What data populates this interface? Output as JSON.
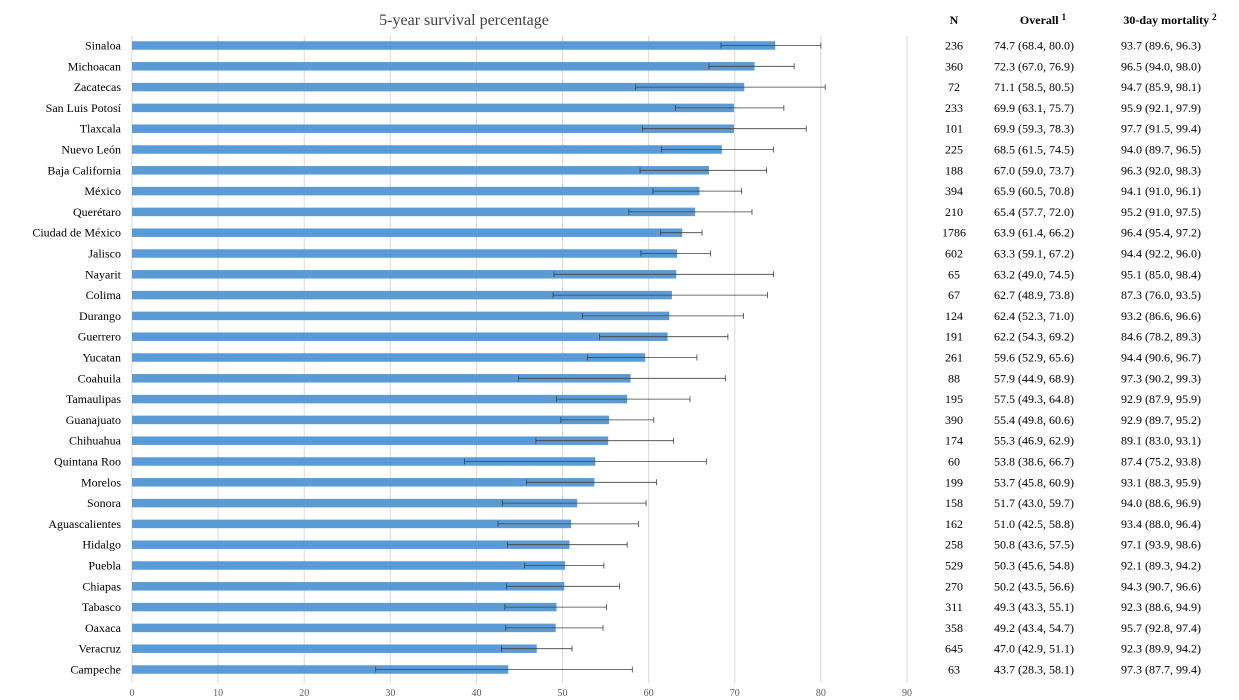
{
  "chart_data": {
    "type": "bar",
    "orientation": "horizontal",
    "title": "5-year survival percentage",
    "xlim": [
      0,
      90
    ],
    "xticks": [
      "0",
      "10",
      "20",
      "30",
      "40",
      "50",
      "60",
      "70",
      "80",
      "90"
    ],
    "grid": true,
    "bar_color": "#5b9bd5",
    "categories": [
      "Sinaloa",
      "Michoacan",
      "Zacatecas",
      "San Luis Potosí",
      "Tlaxcala",
      "Nuevo León",
      "Baja California",
      "México",
      "Querétaro",
      "Ciudad de México",
      "Jalisco",
      "Nayarit",
      "Colima",
      "Durango",
      "Guerrero",
      "Yucatan",
      "Coahuila",
      "Tamaulipas",
      "Guanajuato",
      "Chihuahua",
      "Quintana Roo",
      "Morelos",
      "Sonora",
      "Aguascalientes",
      "Hidalgo",
      "Puebla",
      "Chiapas",
      "Tabasco",
      "Oaxaca",
      "Veracruz",
      "Campeche"
    ],
    "values": [
      74.7,
      72.3,
      71.1,
      69.9,
      69.9,
      68.5,
      67.0,
      65.9,
      65.4,
      63.9,
      63.3,
      63.2,
      62.7,
      62.4,
      62.2,
      59.6,
      57.9,
      57.5,
      55.4,
      55.3,
      53.8,
      53.7,
      51.7,
      51.0,
      50.8,
      50.3,
      50.2,
      49.3,
      49.2,
      47.0,
      43.7
    ],
    "ci_low": [
      68.4,
      67.0,
      58.5,
      63.1,
      59.3,
      61.5,
      59.0,
      60.5,
      57.7,
      61.4,
      59.1,
      49.0,
      48.9,
      52.3,
      54.3,
      52.9,
      44.9,
      49.3,
      49.8,
      46.9,
      38.6,
      45.8,
      43.0,
      42.5,
      43.6,
      45.6,
      43.5,
      43.3,
      43.4,
      42.9,
      28.3
    ],
    "ci_high": [
      80.0,
      76.9,
      80.5,
      75.7,
      78.3,
      74.5,
      73.7,
      70.8,
      72.0,
      66.2,
      67.2,
      74.5,
      73.8,
      71.0,
      69.2,
      65.6,
      68.9,
      64.8,
      60.6,
      62.9,
      66.7,
      60.9,
      59.7,
      58.8,
      57.5,
      54.8,
      56.6,
      55.1,
      54.7,
      51.1,
      58.1
    ]
  },
  "table": {
    "headers": {
      "n": "N",
      "overall": "Overall",
      "overall_sup": "1",
      "mortality": "30-day mortality",
      "mortality_sup": "2"
    },
    "n": [
      "236",
      "360",
      "72",
      "233",
      "101",
      "225",
      "188",
      "394",
      "210",
      "1786",
      "602",
      "65",
      "67",
      "124",
      "191",
      "261",
      "88",
      "195",
      "390",
      "174",
      "60",
      "199",
      "158",
      "162",
      "258",
      "529",
      "270",
      "311",
      "358",
      "645",
      "63"
    ],
    "overall": [
      "74.7 (68.4,  80.0)",
      "72.3 (67.0,  76.9)",
      "71.1 (58.5,  80.5)",
      "69.9 (63.1,  75.7)",
      "69.9 (59.3,  78.3)",
      "68.5 (61.5,  74.5)",
      "67.0 (59.0,  73.7)",
      "65.9 (60.5,  70.8)",
      "65.4 (57.7,  72.0)",
      "63.9 (61.4,  66.2)",
      "63.3 (59.1,  67.2)",
      "63.2 (49.0,  74.5)",
      "62.7 (48.9,  73.8)",
      "62.4 (52.3,  71.0)",
      "62.2 (54.3,  69.2)",
      "59.6 (52.9,  65.6)",
      "57.9 (44.9,  68.9)",
      "57.5 (49.3,  64.8)",
      "55.4 (49.8,  60.6)",
      "55.3 (46.9,  62.9)",
      "53.8 (38.6,  66.7)",
      "53.7 (45.8,  60.9)",
      "51.7 (43.0,  59.7)",
      "51.0 (42.5,  58.8)",
      "50.8 (43.6,  57.5)",
      "50.3 (45.6,  54.8)",
      "50.2 (43.5,  56.6)",
      "49.3 (43.3,  55.1)",
      "49.2 (43.4,  54.7)",
      "47.0 (42.9,  51.1)",
      "43.7 (28.3,  58.1)"
    ],
    "mortality": [
      "93.7 (89.6,  96.3)",
      "96.5 (94.0,  98.0)",
      "94.7 (85.9,  98.1)",
      "95.9 (92.1,  97.9)",
      "97.7 (91.5,  99.4)",
      "94.0 (89.7,  96.5)",
      "96.3 (92.0,  98.3)",
      "94.1 (91.0,  96.1)",
      "95.2 (91.0,  97.5)",
      "96.4 (95.4,  97.2)",
      "94.4 (92.2,  96.0)",
      "95.1 (85.0,  98.4)",
      "87.3 (76.0,  93.5)",
      "93.2 (86.6,  96.6)",
      "84.6 (78.2,  89.3)",
      "94.4 (90.6,  96.7)",
      "97.3 (90.2,  99.3)",
      "92.9 (87.9,  95.9)",
      "92.9 (89.7,  95.2)",
      "89.1 (83.0,  93.1)",
      "87.4 (75.2,  93.8)",
      "93.1 (88.3,  95.9)",
      "94.0 (88.6,  96.9)",
      "93.4 (88.0,  96.4)",
      "97.1 (93.9,  98.6)",
      "92.1 (89.3,  94.2)",
      "94.3 (90.7,  96.6)",
      "92.3 (88.6,  94.9)",
      "95.7 (92.8,  97.4)",
      "92.3 (89.9,  94.2)",
      "97.3 (87.7,  99.4)"
    ]
  }
}
